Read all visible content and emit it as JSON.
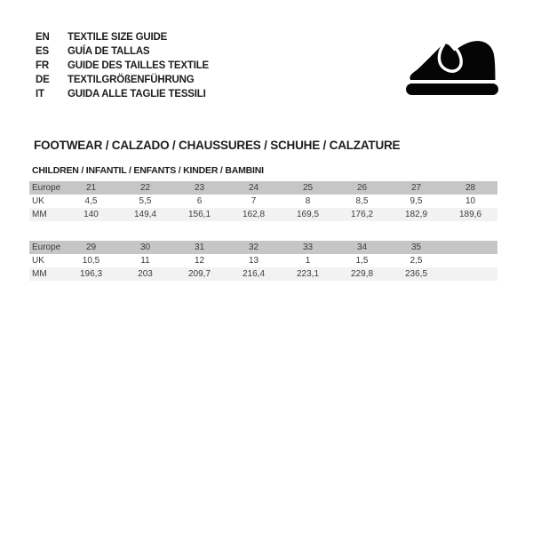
{
  "language_guide": {
    "items": [
      {
        "code": "EN",
        "title": "TEXTILE SIZE GUIDE"
      },
      {
        "code": "ES",
        "title": "GUÍA DE TALLAS"
      },
      {
        "code": "FR",
        "title": "GUIDE DES TAILLES TEXTILE"
      },
      {
        "code": "DE",
        "title": "TEXTILGRÖßENFÜHRUNG"
      },
      {
        "code": "IT",
        "title": "GUIDA ALLE TAGLIE TESSILI"
      }
    ]
  },
  "logo": {
    "icon": "children-shoe-icon"
  },
  "section": {
    "title": "FOOTWEAR / CALZADO / CHAUSSURES / SCHUHE / CALZATURE",
    "subtitle": "CHILDREN / INFANTIL / ENFANTS / KINDER / BAMBINI"
  },
  "colors": {
    "header_row_bg": "#c6c6c6",
    "mm_row_bg": "#f2f2f2",
    "icon": "#050505",
    "text": "#1d1d1b"
  },
  "chart_data": [
    {
      "type": "table",
      "title": "Children footwear sizes EU 21-28",
      "rows": [
        {
          "label": "Europe",
          "values": [
            "21",
            "22",
            "23",
            "24",
            "25",
            "26",
            "27",
            "28"
          ]
        },
        {
          "label": "UK",
          "values": [
            "4,5",
            "5,5",
            "6",
            "7",
            "8",
            "8,5",
            "9,5",
            "10"
          ]
        },
        {
          "label": "MM",
          "values": [
            "140",
            "149,4",
            "156,1",
            "162,8",
            "169,5",
            "176,2",
            "182,9",
            "189,6"
          ]
        }
      ]
    },
    {
      "type": "table",
      "title": "Children footwear sizes EU 29-35",
      "rows": [
        {
          "label": "Europe",
          "values": [
            "29",
            "30",
            "31",
            "32",
            "33",
            "34",
            "35",
            ""
          ]
        },
        {
          "label": "UK",
          "values": [
            "10,5",
            "11",
            "12",
            "13",
            "1",
            "1,5",
            "2,5",
            ""
          ]
        },
        {
          "label": "MM",
          "values": [
            "196,3",
            "203",
            "209,7",
            "216,4",
            "223,1",
            "229,8",
            "236,5",
            ""
          ]
        }
      ]
    }
  ]
}
